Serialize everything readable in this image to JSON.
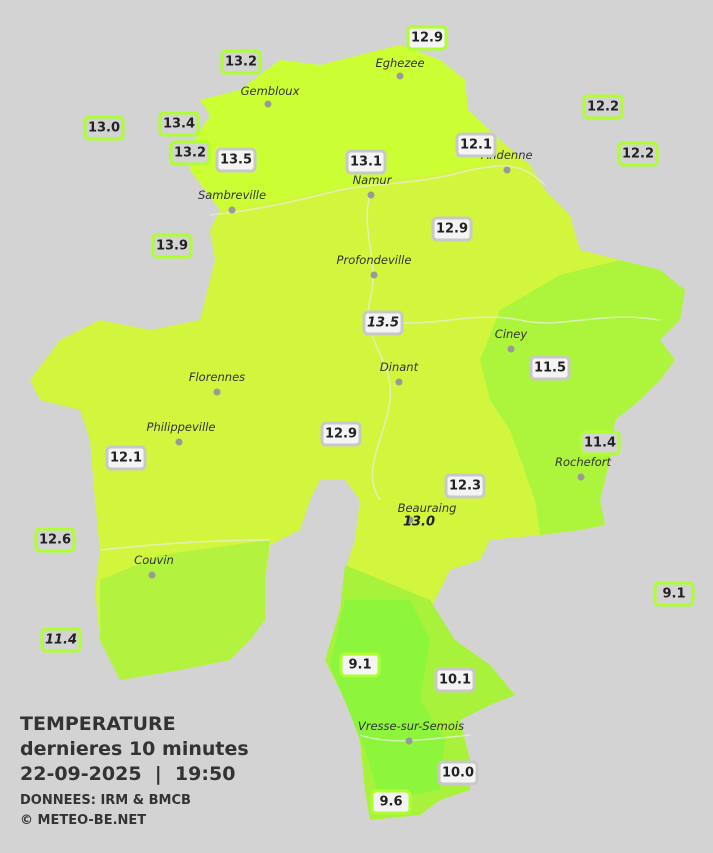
{
  "header": {
    "title": "TEMPERATURE",
    "subtitle": "dernieres 10 minutes",
    "timestamp": "22-09-2025  |  19:50",
    "source": "DONNEES: IRM & BMCB",
    "credit": "© METEO-BE.NET"
  },
  "cities": [
    "Eghezee",
    "Gembloux",
    "Andenne",
    "Namur",
    "Sambreville",
    "Profondeville",
    "Ciney",
    "Dinant",
    "Florennes",
    "Philippeville",
    "Rochefort",
    "Beauraing",
    "Couvin",
    "Vresse-sur-Semois"
  ],
  "readings": [
    "12.9",
    "13.2",
    "13.0",
    "13.4",
    "13.2",
    "13.5",
    "13.1",
    "12.1",
    "12.2",
    "12.2",
    "13.9",
    "12.9",
    "13.5",
    "11.5",
    "11.4",
    "12.9",
    "12.1",
    "12.3",
    "13.0",
    "12.6",
    "9.1",
    "11.4",
    "9.1",
    "10.1",
    "10.0",
    "9.6"
  ]
}
